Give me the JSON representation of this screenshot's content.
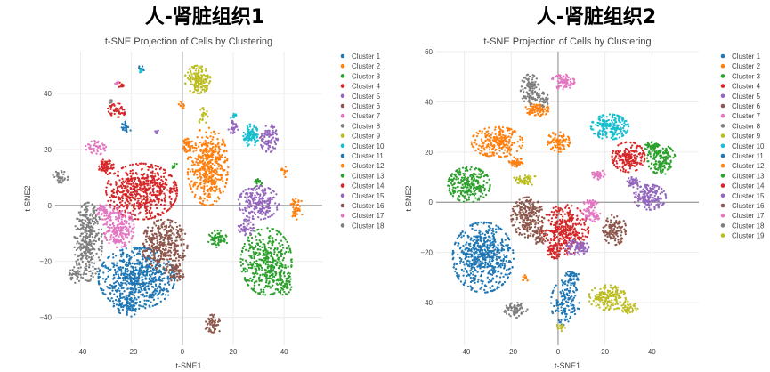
{
  "headings": [
    "人-肾脏组织1",
    "人-肾脏组织2"
  ],
  "palette": [
    "#1f77b4",
    "#ff7f0e",
    "#2ca02c",
    "#d62728",
    "#9467bd",
    "#8c564b",
    "#e377c2",
    "#7f7f7f",
    "#bcbd22",
    "#17becf"
  ],
  "chart_data": [
    {
      "type": "scatter",
      "title": "t-SNE Projection of Cells by Clustering",
      "xlabel": "t-SNE1",
      "ylabel": "t-SNE2",
      "xlim": [
        -50,
        55
      ],
      "ylim": [
        -50,
        55
      ],
      "xticks": [
        -40,
        -20,
        0,
        20,
        40
      ],
      "yticks": [
        -40,
        -20,
        0,
        20,
        40
      ],
      "grid": true,
      "legend_position": "right",
      "clusters": [
        {
          "name": "Cluster 1",
          "color": "#1f77b4",
          "blobs": [
            {
              "cx": -18,
              "cy": -26,
              "rx": 15,
              "ry": 11,
              "n": 700
            },
            {
              "cx": -22,
              "cy": 28,
              "rx": 2,
              "ry": 2,
              "n": 25
            },
            {
              "cx": -16,
              "cy": 49,
              "rx": 1.5,
              "ry": 1,
              "n": 10
            }
          ]
        },
        {
          "name": "Cluster 2",
          "color": "#ff7f0e",
          "blobs": [
            {
              "cx": 10,
              "cy": 14,
              "rx": 8,
              "ry": 14,
              "n": 460
            },
            {
              "cx": 45,
              "cy": -1,
              "rx": 2.5,
              "ry": 4,
              "n": 45
            },
            {
              "cx": 40,
              "cy": 12,
              "rx": 1.5,
              "ry": 2,
              "n": 12
            },
            {
              "cx": 0,
              "cy": 36,
              "rx": 1.5,
              "ry": 2,
              "n": 10
            }
          ]
        },
        {
          "name": "Cluster 3",
          "color": "#2ca02c",
          "blobs": [
            {
              "cx": 33,
              "cy": -20,
              "rx": 10,
              "ry": 12,
              "n": 420
            },
            {
              "cx": 14,
              "cy": -12,
              "rx": 4,
              "ry": 3,
              "n": 60
            },
            {
              "cx": 30,
              "cy": 8,
              "rx": 2,
              "ry": 2,
              "n": 18
            },
            {
              "cx": -3,
              "cy": 14,
              "rx": 1.2,
              "ry": 1.2,
              "n": 8
            }
          ]
        },
        {
          "name": "Cluster 4",
          "color": "#d62728",
          "blobs": [
            {
              "cx": -16,
              "cy": 5,
              "rx": 14,
              "ry": 10,
              "n": 600
            },
            {
              "cx": -26,
              "cy": 34,
              "rx": 4,
              "ry": 2.5,
              "n": 50
            },
            {
              "cx": -24,
              "cy": 43,
              "rx": 1.5,
              "ry": 1,
              "n": 10
            }
          ]
        },
        {
          "name": "Cluster 5",
          "color": "#9467bd",
          "blobs": [
            {
              "cx": 30,
              "cy": 1,
              "rx": 8,
              "ry": 6,
              "n": 220
            },
            {
              "cx": 34,
              "cy": 24,
              "rx": 3.5,
              "ry": 5,
              "n": 90
            },
            {
              "cx": 20,
              "cy": 28,
              "rx": 2,
              "ry": 2.5,
              "n": 30
            },
            {
              "cx": -10,
              "cy": 26,
              "rx": 1,
              "ry": 1,
              "n": 8
            }
          ]
        },
        {
          "name": "Cluster 6",
          "color": "#8c564b",
          "blobs": [
            {
              "cx": -7,
              "cy": -14,
              "rx": 9,
              "ry": 9,
              "n": 340
            },
            {
              "cx": 12,
              "cy": -43,
              "rx": 3,
              "ry": 4,
              "n": 55
            }
          ]
        },
        {
          "name": "Cluster 7",
          "color": "#e377c2",
          "blobs": [
            {
              "cx": -25,
              "cy": -8,
              "rx": 6,
              "ry": 7,
              "n": 220
            },
            {
              "cx": -34,
              "cy": 21,
              "rx": 4,
              "ry": 3,
              "n": 50
            },
            {
              "cx": -26,
              "cy": 44,
              "rx": 1,
              "ry": 1,
              "n": 8
            }
          ]
        },
        {
          "name": "Cluster 8",
          "color": "#7f7f7f",
          "blobs": [
            {
              "cx": -37,
              "cy": -13,
              "rx": 5.5,
              "ry": 14,
              "n": 330
            },
            {
              "cx": -48,
              "cy": 10,
              "rx": 3,
              "ry": 2.5,
              "n": 35
            },
            {
              "cx": -28,
              "cy": 37,
              "rx": 1,
              "ry": 1,
              "n": 8
            }
          ]
        },
        {
          "name": "Cluster 9",
          "color": "#bcbd22",
          "blobs": [
            {
              "cx": 6,
              "cy": 45,
              "rx": 5,
              "ry": 5,
              "n": 170
            },
            {
              "cx": 8,
              "cy": 32,
              "rx": 2,
              "ry": 3,
              "n": 25
            }
          ]
        },
        {
          "name": "Cluster 10",
          "color": "#17becf",
          "blobs": [
            {
              "cx": 27,
              "cy": 25,
              "rx": 3,
              "ry": 4,
              "n": 90
            },
            {
              "cx": 20,
              "cy": 32,
              "rx": 1.2,
              "ry": 1.2,
              "n": 10
            },
            {
              "cx": -16,
              "cy": 48,
              "rx": 1,
              "ry": 1,
              "n": 8
            }
          ]
        },
        {
          "name": "Cluster 11",
          "color": "#1f77b4",
          "blobs": [
            {
              "cx": -22,
              "cy": -36,
              "rx": 5,
              "ry": 4,
              "n": 80
            }
          ]
        },
        {
          "name": "Cluster 12",
          "color": "#ff7f0e",
          "blobs": [
            {
              "cx": 2,
              "cy": 22,
              "rx": 2,
              "ry": 3,
              "n": 40
            }
          ]
        },
        {
          "name": "Cluster 13",
          "color": "#2ca02c",
          "blobs": [
            {
              "cx": 40,
              "cy": -28,
              "rx": 3,
              "ry": 4,
              "n": 60
            }
          ]
        },
        {
          "name": "Cluster 14",
          "color": "#d62728",
          "blobs": [
            {
              "cx": -30,
              "cy": 14,
              "rx": 3,
              "ry": 3,
              "n": 60
            }
          ]
        },
        {
          "name": "Cluster 15",
          "color": "#9467bd",
          "blobs": [
            {
              "cx": 25,
              "cy": -8,
              "rx": 3,
              "ry": 3,
              "n": 50
            }
          ]
        },
        {
          "name": "Cluster 16",
          "color": "#8c564b",
          "blobs": [
            {
              "cx": -3,
              "cy": -24,
              "rx": 4,
              "ry": 3,
              "n": 60
            }
          ]
        },
        {
          "name": "Cluster 17",
          "color": "#e377c2",
          "blobs": [
            {
              "cx": -31,
              "cy": -2,
              "rx": 3,
              "ry": 3,
              "n": 50
            }
          ]
        },
        {
          "name": "Cluster 18",
          "color": "#7f7f7f",
          "blobs": [
            {
              "cx": -42,
              "cy": -25,
              "rx": 2.5,
              "ry": 3,
              "n": 40
            }
          ]
        }
      ]
    },
    {
      "type": "scatter",
      "title": "t-SNE Projection of Cells by Clustering",
      "xlabel": "t-SNE1",
      "ylabel": "t-SNE2",
      "xlim": [
        -52,
        60
      ],
      "ylim": [
        -57,
        60
      ],
      "xticks": [
        -40,
        -20,
        0,
        20,
        40
      ],
      "yticks": [
        -40,
        -20,
        0,
        20,
        40,
        60
      ],
      "grid": true,
      "legend_position": "right",
      "clusters": [
        {
          "name": "Cluster 1",
          "color": "#1f77b4",
          "blobs": [
            {
              "cx": -32,
              "cy": -22,
              "rx": 13,
              "ry": 14,
              "n": 620
            },
            {
              "cx": 3,
              "cy": -40,
              "rx": 6,
              "ry": 9,
              "n": 140
            }
          ]
        },
        {
          "name": "Cluster 2",
          "color": "#ff7f0e",
          "blobs": [
            {
              "cx": -26,
              "cy": 24,
              "rx": 11,
              "ry": 6,
              "n": 240
            },
            {
              "cx": -9,
              "cy": 37,
              "rx": 5,
              "ry": 3,
              "n": 90
            },
            {
              "cx": 0,
              "cy": 24,
              "rx": 5,
              "ry": 4,
              "n": 90
            },
            {
              "cx": -14,
              "cy": -30,
              "rx": 1.5,
              "ry": 1.5,
              "n": 12
            }
          ]
        },
        {
          "name": "Cluster 3",
          "color": "#2ca02c",
          "blobs": [
            {
              "cx": -38,
              "cy": 7,
              "rx": 9,
              "ry": 7,
              "n": 260
            },
            {
              "cx": 44,
              "cy": 17,
              "rx": 6,
              "ry": 6,
              "n": 160
            }
          ]
        },
        {
          "name": "Cluster 4",
          "color": "#d62728",
          "blobs": [
            {
              "cx": 3,
              "cy": -11,
              "rx": 10,
              "ry": 10,
              "n": 360
            },
            {
              "cx": 30,
              "cy": 18,
              "rx": 7,
              "ry": 6,
              "n": 200
            }
          ]
        },
        {
          "name": "Cluster 5",
          "color": "#9467bd",
          "blobs": [
            {
              "cx": 39,
              "cy": 2,
              "rx": 7,
              "ry": 5,
              "n": 170
            },
            {
              "cx": 8,
              "cy": -18,
              "rx": 5,
              "ry": 3,
              "n": 80
            }
          ]
        },
        {
          "name": "Cluster 6",
          "color": "#8c564b",
          "blobs": [
            {
              "cx": -13,
              "cy": -6,
              "rx": 7,
              "ry": 8,
              "n": 230
            },
            {
              "cx": 24,
              "cy": -11,
              "rx": 5,
              "ry": 6,
              "n": 120
            }
          ]
        },
        {
          "name": "Cluster 7",
          "color": "#e377c2",
          "blobs": [
            {
              "cx": 2,
              "cy": 48,
              "rx": 5,
              "ry": 3,
              "n": 90
            },
            {
              "cx": 14,
              "cy": -5,
              "rx": 4,
              "ry": 3,
              "n": 60
            },
            {
              "cx": 17,
              "cy": 11,
              "rx": 3,
              "ry": 2,
              "n": 35
            }
          ]
        },
        {
          "name": "Cluster 8",
          "color": "#7f7f7f",
          "blobs": [
            {
              "cx": -12,
              "cy": 45,
              "rx": 4,
              "ry": 6,
              "n": 110
            },
            {
              "cx": -18,
              "cy": -43,
              "rx": 5,
              "ry": 3,
              "n": 75
            }
          ]
        },
        {
          "name": "Cluster 9",
          "color": "#bcbd22",
          "blobs": [
            {
              "cx": 21,
              "cy": -38,
              "rx": 8,
              "ry": 5,
              "n": 170
            },
            {
              "cx": -14,
              "cy": 9,
              "rx": 5,
              "ry": 2.5,
              "n": 50
            },
            {
              "cx": 1,
              "cy": -50,
              "rx": 2,
              "ry": 1.5,
              "n": 15
            }
          ]
        },
        {
          "name": "Cluster 10",
          "color": "#17becf",
          "blobs": [
            {
              "cx": 22,
              "cy": 30,
              "rx": 8,
              "ry": 5,
              "n": 190
            }
          ]
        },
        {
          "name": "Cluster 11",
          "color": "#1f77b4",
          "blobs": [
            {
              "cx": 6,
              "cy": -30,
              "rx": 3,
              "ry": 3,
              "n": 50
            }
          ]
        },
        {
          "name": "Cluster 12",
          "color": "#ff7f0e",
          "blobs": [
            {
              "cx": -18,
              "cy": 16,
              "rx": 3,
              "ry": 2,
              "n": 40
            }
          ]
        },
        {
          "name": "Cluster 13",
          "color": "#2ca02c",
          "blobs": [
            {
              "cx": 40,
              "cy": 22,
              "rx": 3,
              "ry": 2,
              "n": 40
            }
          ]
        },
        {
          "name": "Cluster 14",
          "color": "#d62728",
          "blobs": [
            {
              "cx": -2,
              "cy": -20,
              "rx": 3,
              "ry": 3,
              "n": 50
            }
          ]
        },
        {
          "name": "Cluster 15",
          "color": "#9467bd",
          "blobs": [
            {
              "cx": 32,
              "cy": 8,
              "rx": 3,
              "ry": 2,
              "n": 40
            }
          ]
        },
        {
          "name": "Cluster 16",
          "color": "#8c564b",
          "blobs": [
            {
              "cx": -8,
              "cy": -14,
              "rx": 3,
              "ry": 3,
              "n": 40
            }
          ]
        },
        {
          "name": "Cluster 17",
          "color": "#e377c2",
          "blobs": [
            {
              "cx": 14,
              "cy": 0,
              "rx": 3,
              "ry": 2,
              "n": 35
            }
          ]
        },
        {
          "name": "Cluster 18",
          "color": "#7f7f7f",
          "blobs": [
            {
              "cx": -6,
              "cy": 41,
              "rx": 2,
              "ry": 3,
              "n": 30
            }
          ]
        },
        {
          "name": "Cluster 19",
          "color": "#bcbd22",
          "blobs": [
            {
              "cx": 30,
              "cy": -42,
              "rx": 4,
              "ry": 2.5,
              "n": 40
            }
          ]
        }
      ]
    }
  ]
}
